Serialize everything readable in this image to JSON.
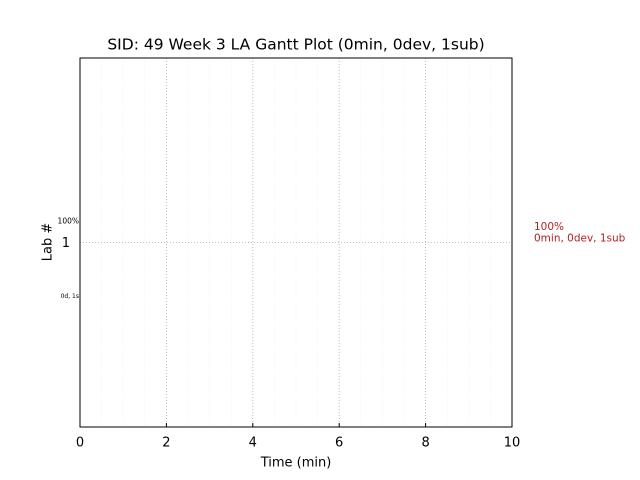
{
  "chart_data": {
    "type": "gantt",
    "title": "SID: 49 Week 3 LA Gantt Plot (0min, 0dev, 1sub)",
    "xlabel": "Time (min)",
    "ylabel": "Lab #",
    "xlim": [
      0,
      10
    ],
    "xticks": [
      0,
      2,
      4,
      6,
      8,
      10
    ],
    "xminorticks": [
      0.5,
      1,
      1.5,
      2.5,
      3,
      3.5,
      4.5,
      5,
      5.5,
      6.5,
      7,
      7.5,
      8.5,
      9,
      9.5
    ],
    "ylim": [
      0,
      2
    ],
    "yticks": [
      1
    ],
    "grid": true,
    "bar_top_label": "100%",
    "bar_bottom_label": "0d, 1s",
    "summary": [
      "100%",
      "0min, 0dev, 1sub"
    ],
    "summary_color": "#b22222"
  }
}
